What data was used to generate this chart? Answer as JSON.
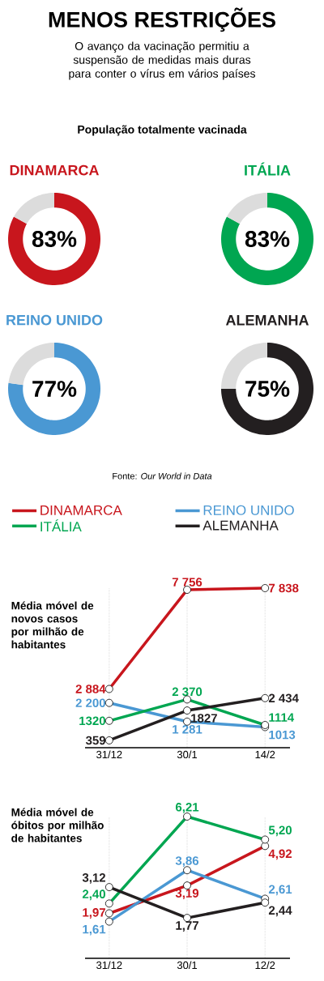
{
  "chart_data": [
    {
      "type": "other",
      "title": "MENOS RESTRIÇÕES",
      "subtitle": "O avanço da vacinação permitiu a suspensão de medidas mais duras para conter o vírus em vários países",
      "annotations": [
        "População totalmente vacinada"
      ]
    },
    {
      "type": "donut",
      "title": "DINAMARCA",
      "categories": [
        null,
        null
      ],
      "values": [
        83,
        17
      ],
      "colors": [
        "#c8161d",
        "#dcdcdc"
      ],
      "value_labels": [
        "83%",
        null
      ]
    },
    {
      "type": "donut",
      "title": "ITÁLIA",
      "categories": [
        null,
        null
      ],
      "values": [
        83,
        17
      ],
      "colors": [
        "#00a651",
        "#dcdcdc"
      ],
      "value_labels": [
        "83%",
        null
      ]
    },
    {
      "type": "donut",
      "title": "REINO UNIDO",
      "categories": [
        null,
        null
      ],
      "values": [
        77,
        23
      ],
      "colors": [
        "#4a98d3",
        "#dcdcdc"
      ],
      "value_labels": [
        "77%",
        null
      ]
    },
    {
      "type": "donut",
      "title": "ALEMANHA",
      "categories": [
        null,
        null
      ],
      "values": [
        75,
        25
      ],
      "colors": [
        "#231f20",
        "#dcdcdc"
      ],
      "value_labels": [
        "75%",
        null
      ],
      "annotations": [
        "Fonte: *Our World in Data*"
      ]
    },
    {
      "type": "line",
      "title": "Média móvel de novos casos por milhão de habitantes",
      "categories": [
        "31/12",
        "30/1",
        "14/2"
      ],
      "grid": "x",
      "legend": "top",
      "marker": "circle",
      "series": [
        {
          "name": "DINAMARCA",
          "color": "#c8161d",
          "values": [
            2884,
            7756,
            7838
          ],
          "value_labels": [
            "2 884",
            "7 756",
            "7 838"
          ]
        },
        {
          "name": "REINO UNIDO",
          "color": "#4a98d3",
          "values": [
            2200,
            1281,
            1013
          ],
          "value_labels": [
            "2 200",
            "1 281",
            "1013"
          ]
        },
        {
          "name": "ITÁLIA",
          "color": "#00a651",
          "values": [
            1320,
            2370,
            1114
          ],
          "value_labels": [
            "1320",
            "2 370",
            "1114"
          ]
        },
        {
          "name": "ALEMANHA",
          "color": "#231f20",
          "values": [
            359,
            1827,
            2434
          ],
          "value_labels": [
            "359",
            "1827",
            "2 434"
          ]
        }
      ]
    },
    {
      "type": "line",
      "title": "Média móvel de óbitos por milhão de habitantes",
      "categories": [
        "31/12",
        "30/1",
        "12/2"
      ],
      "grid": "x",
      "marker": "circle",
      "series": [
        {
          "color": "#c8161d",
          "values": [
            1.97,
            3.19,
            4.92
          ],
          "value_labels": [
            "1,97",
            "3,19",
            "4,92"
          ]
        },
        {
          "color": "#4a98d3",
          "values": [
            1.61,
            3.86,
            2.61
          ],
          "value_labels": [
            "1,61",
            "3,86",
            "2,61"
          ]
        },
        {
          "color": "#00a651",
          "values": [
            2.4,
            6.21,
            5.2
          ],
          "value_labels": [
            "2,40",
            "6,21",
            "5,20"
          ]
        },
        {
          "color": "#231f20",
          "values": [
            3.12,
            1.77,
            2.44
          ],
          "value_labels": [
            "3,12",
            "1,77",
            "2,44"
          ]
        }
      ]
    }
  ]
}
